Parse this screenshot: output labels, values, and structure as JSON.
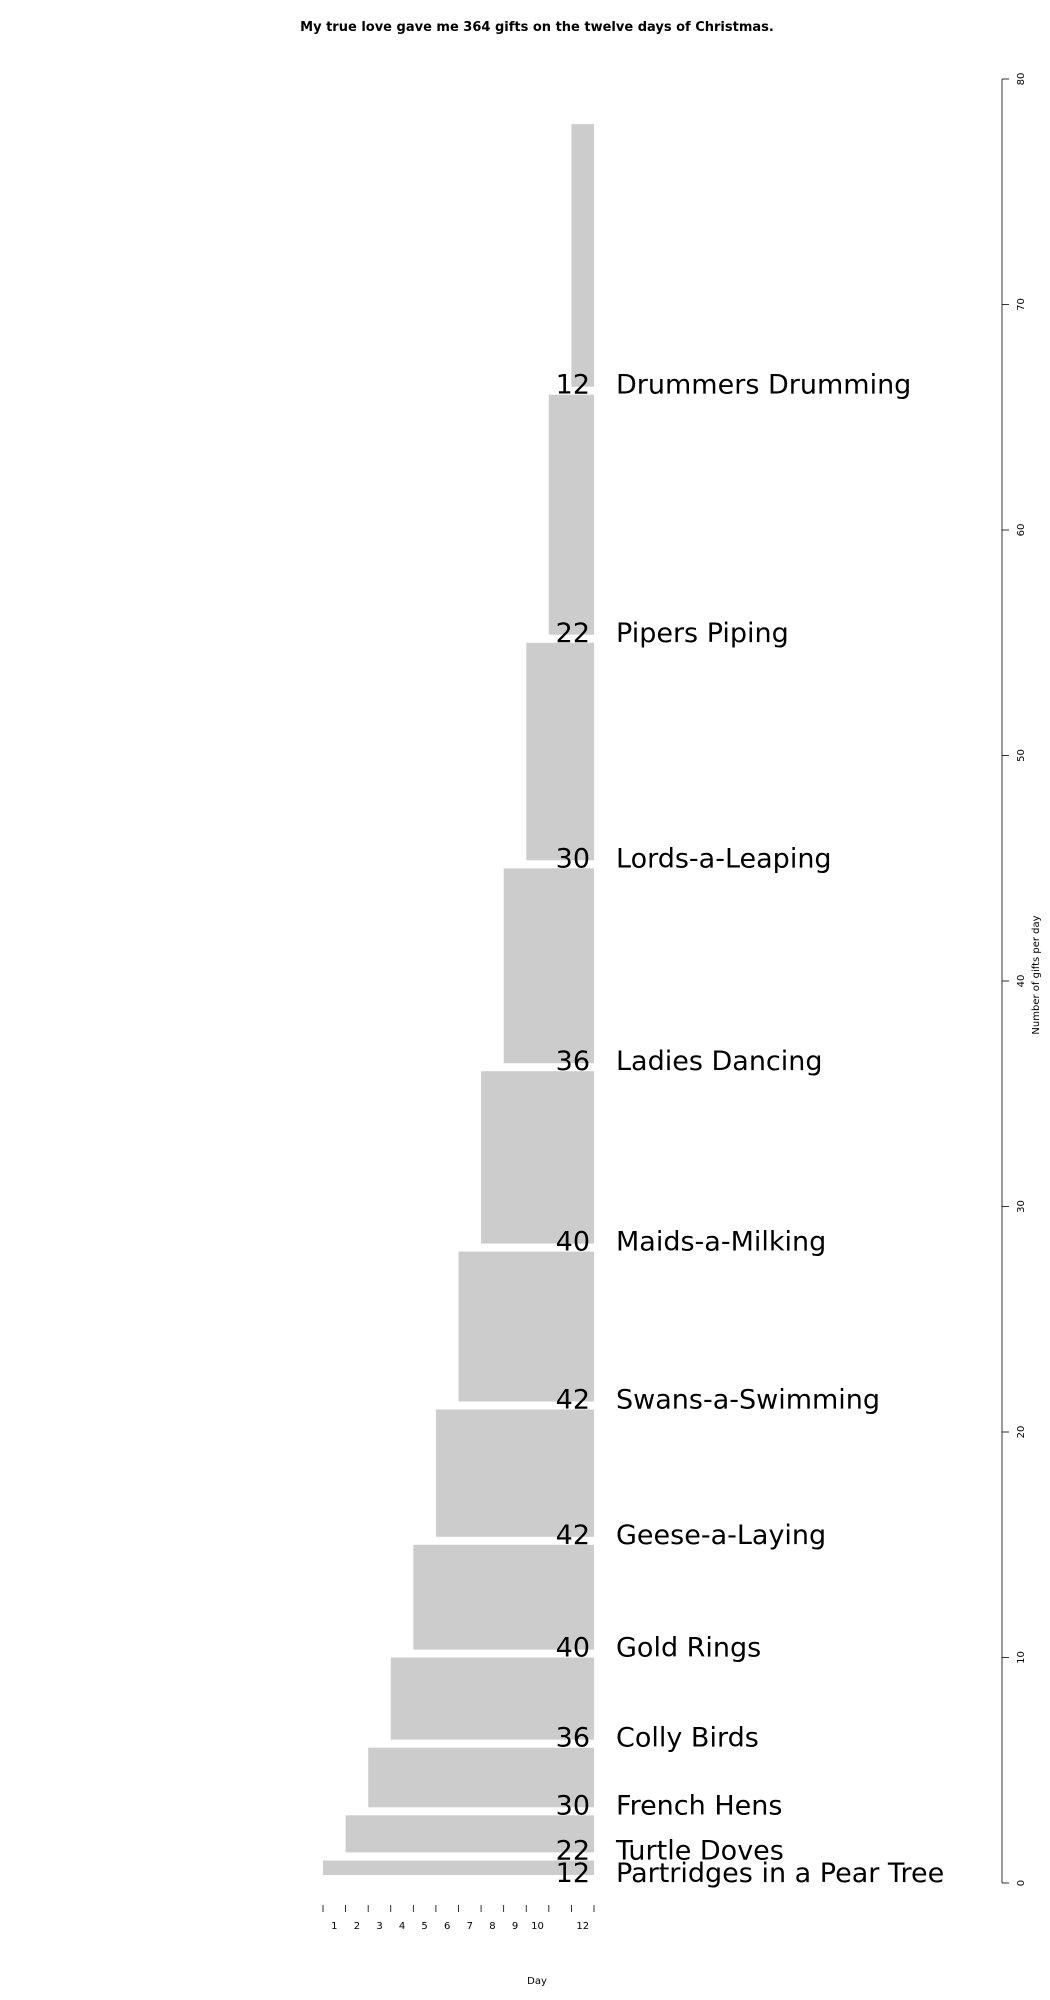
{
  "chart_data": {
    "type": "bar",
    "title": "My true love gave me 364 gifts on the twelve days of Christmas.",
    "xlabel": "Day",
    "ylabel": "Number of gifts per day",
    "x_ticks": [
      1,
      2,
      3,
      4,
      5,
      6,
      7,
      8,
      9,
      10,
      12
    ],
    "y_ticks": [
      0,
      10,
      20,
      30,
      40,
      50,
      60,
      70,
      80
    ],
    "ylim": [
      0,
      80
    ],
    "xlim": [
      0,
      12
    ],
    "bar_color": "#cccccc",
    "items": [
      {
        "gift": "Partridges in a Pear Tree",
        "first_day": 1,
        "days": 12,
        "total": 12,
        "y_from": 0,
        "y_to": 1
      },
      {
        "gift": "Turtle Doves",
        "first_day": 2,
        "days": 11,
        "total": 22,
        "y_from": 1,
        "y_to": 3
      },
      {
        "gift": "French Hens",
        "first_day": 3,
        "days": 10,
        "total": 30,
        "y_from": 3,
        "y_to": 6
      },
      {
        "gift": "Colly Birds",
        "first_day": 4,
        "days": 9,
        "total": 36,
        "y_from": 6,
        "y_to": 10
      },
      {
        "gift": "Gold Rings",
        "first_day": 5,
        "days": 8,
        "total": 40,
        "y_from": 10,
        "y_to": 15
      },
      {
        "gift": "Geese-a-Laying",
        "first_day": 6,
        "days": 7,
        "total": 42,
        "y_from": 15,
        "y_to": 21
      },
      {
        "gift": "Swans-a-Swimming",
        "first_day": 7,
        "days": 6,
        "total": 42,
        "y_from": 21,
        "y_to": 28
      },
      {
        "gift": "Maids-a-Milking",
        "first_day": 8,
        "days": 5,
        "total": 40,
        "y_from": 28,
        "y_to": 36
      },
      {
        "gift": "Ladies Dancing",
        "first_day": 9,
        "days": 4,
        "total": 36,
        "y_from": 36,
        "y_to": 45
      },
      {
        "gift": "Lords-a-Leaping",
        "first_day": 10,
        "days": 3,
        "total": 30,
        "y_from": 45,
        "y_to": 55
      },
      {
        "gift": "Pipers Piping",
        "first_day": 11,
        "days": 2,
        "total": 22,
        "y_from": 55,
        "y_to": 66
      },
      {
        "gift": "Drummers Drumming",
        "first_day": 12,
        "days": 1,
        "total": 12,
        "y_from": 66,
        "y_to": 78
      }
    ]
  }
}
